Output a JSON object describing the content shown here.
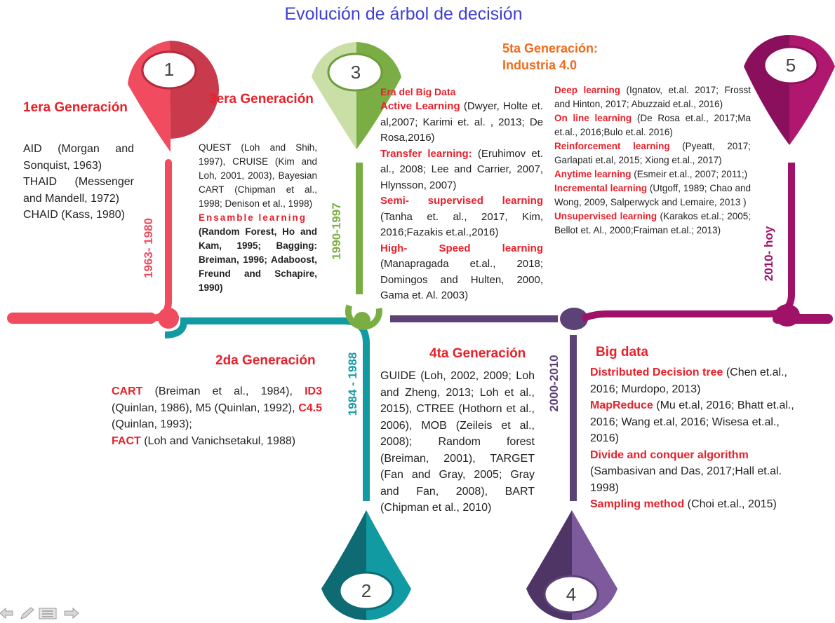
{
  "title": "Evolución de árbol de decisión",
  "pins": [
    {
      "number": "1",
      "color": "#e8475a"
    },
    {
      "number": "2",
      "color": "#0e8a94"
    },
    {
      "number": "3",
      "color": "#7fad45"
    },
    {
      "number": "4",
      "color": "#6a4a86"
    },
    {
      "number": "5",
      "color": "#a01268"
    }
  ],
  "periods": {
    "p1": "1963- 1980",
    "p2": "1984 - 1988",
    "p3": "1990-1997",
    "p4": "2000-2010",
    "p5": "2010- hoy"
  },
  "gen1": {
    "title": "1era Generación",
    "items": [
      "AID (Morgan and Sonquist, 1963)",
      "THAID (Messenger and Mandell, 1972)",
      "CHAID (Kass, 1980)"
    ]
  },
  "gen2": {
    "title": "2da Generación",
    "cart": "CART",
    "cart_ref": " (Breiman et al., 1984), ",
    "id3": "ID3",
    "id3_ref": " (Quinlan, 1986), M5 (Quinlan, 1992), ",
    "c45": "C4.5",
    "c45_ref": " (Quinlan, 1993);",
    "fact": "FACT",
    "fact_ref": " (Loh and Vanichsetakul, 1988)"
  },
  "gen3": {
    "title": "3era Generación",
    "text": "QUEST (Loh and Shih, 1997), CRUISE (Kim and Loh, 2001, 2003), Bayesian CART (Chipman et al., 1998; Denison et al., 1998)",
    "ensemble": "Ensamble learning",
    "ensemble_text": "(Random Forest, Ho and Kam, 1995; Bagging: Breiman, 1996; Adaboost, Freund and Schapire, 1990)"
  },
  "gen4": {
    "title": "4ta Generación",
    "text": "GUIDE (Loh, 2002, 2009; Loh and Zheng, 2013; Loh et al., 2015), CTREE (Hothorn et al., 2006), MOB (Zeileis et al., 2008); Random forest (Breiman, 2001), TARGET (Fan and Gray, 2005; Gray and Fan, 2008), BART (Chipman et al., 2010)"
  },
  "bigdata_era": {
    "heading": "Era del Big Data",
    "active": "Active Learning",
    "active_ref": " (Dwyer, Holte et. al,2007; Karimi et. al. , 2013; De Rosa,2016)",
    "transfer": "Transfer learning:",
    "transfer_ref": " (Eruhimov et. al., 2008; Lee and Carrier, 2007, Hlynsson, 2007)",
    "semi": "Semi- supervised learning",
    "semi_ref": " (Tanha et. al., 2017, Kim, 2016;Fazakis et.al.,2016)",
    "speed": "High- Speed learning",
    "speed_ref": " (Manapragada et.al., 2018; Domingos and Hulten, 2000, Gama et. Al. 2003)"
  },
  "bigdata": {
    "title": "Big data",
    "ddt": "Distributed Decision tree",
    "ddt_ref": "  (Chen et.al., 2016; Murdopo, 2013)",
    "mr": "MapReduce",
    "mr_ref": " (Mu et.al, 2016; Bhatt et.al., 2016; Wang et.al, 2016; Wisesa et.al., 2016)",
    "dc": "Divide and conquer algorithm",
    "dc_ref": " (Sambasivan and Das, 2017;Hall et.al. 1998)",
    "sm": "Sampling method",
    "sm_ref": "  (Choi et.al., 2015)"
  },
  "gen5": {
    "title_line1": "5ta Generación:",
    "title_line2": "Industria 4.0",
    "deep": "Deep learning",
    "deep_ref": " (Ignatov, et.al. 2017; Frosst and Hinton, 2017; Abuzzaid et.al., 2016)",
    "online": "On line learning",
    "online_ref": " (De Rosa et.al., 2017;Ma et.al., 2016;Bulo et.al. 2016)",
    "rl": "Reinforcement learning",
    "rl_ref": " (Pyeatt, 2017; Garlapati et.al, 2015; Xiong et.al., 2017)",
    "any": "Anytime learning",
    "any_ref": " (Esmeir et.al., 2007; 2011;)",
    "inc": "Incremental learning",
    "inc_ref": " (Utgoff, 1989; Chao and Wong, 2009, Salperwyck and Lemaire, 2013 )",
    "unsup": "Unsupervised  learning",
    "unsup_ref": " (Karakos et.al.; 2005; Bellot et. Al., 2000;Fraiman et.al.; 2013)"
  },
  "nav": [
    "back-arrow-icon",
    "pen-icon",
    "menu-icon",
    "forward-arrow-icon"
  ]
}
